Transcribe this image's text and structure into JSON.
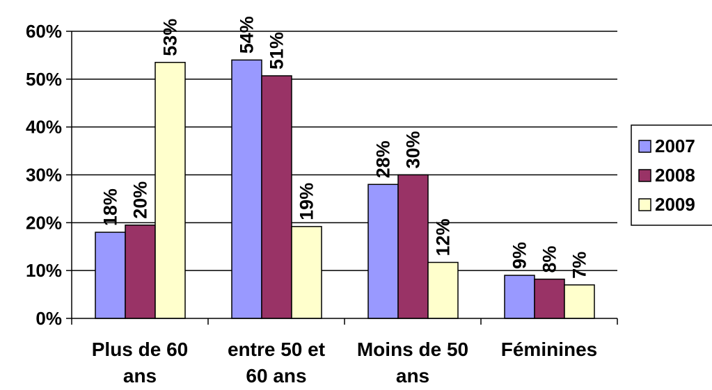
{
  "chart_data": {
    "type": "bar",
    "title": "",
    "xlabel": "",
    "ylabel": "",
    "ylim": [
      0,
      60
    ],
    "yticks": [
      {
        "value": 0,
        "label": "0%"
      },
      {
        "value": 10,
        "label": "10%"
      },
      {
        "value": 20,
        "label": "20%"
      },
      {
        "value": 30,
        "label": "30%"
      },
      {
        "value": 40,
        "label": "40%"
      },
      {
        "value": 50,
        "label": "50%"
      },
      {
        "value": 60,
        "label": "60%"
      }
    ],
    "grid": true,
    "legend_position": "right",
    "categories": [
      {
        "line1": "Plus de 60",
        "line2": "ans"
      },
      {
        "line1": "entre 50 et",
        "line2": "60 ans"
      },
      {
        "line1": "Moins de 50",
        "line2": "ans"
      },
      {
        "line1": "Féminines",
        "line2": ""
      }
    ],
    "series": [
      {
        "name": "2007",
        "color": "#9999ff",
        "values": [
          18,
          54,
          28,
          9
        ],
        "labels": [
          "18%",
          "54%",
          "28%",
          "9%"
        ]
      },
      {
        "name": "2008",
        "color": "#993366",
        "values": [
          19.5,
          50.7,
          30,
          8.2
        ],
        "labels": [
          "20%",
          "51%",
          "30%",
          "8%"
        ]
      },
      {
        "name": "2009",
        "color": "#ffffcc",
        "values": [
          53.5,
          19.2,
          11.7,
          7
        ],
        "labels": [
          "53%",
          "19%",
          "12%",
          "7%"
        ]
      }
    ]
  }
}
